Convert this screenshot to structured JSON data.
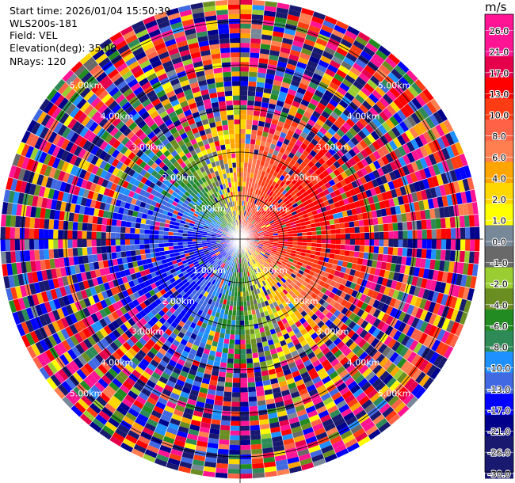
{
  "info": {
    "start_time": "Start time: 2026/01/04 15:50:39",
    "instrument": "WLS200s-181",
    "field": "Field: VEL",
    "elevation": "Elevation(deg): 35.00",
    "nrays": "NRays: 120"
  },
  "colorbar": {
    "unit": "m/s",
    "ticks": [
      "26.0",
      "21.0",
      "17.0",
      "13.0",
      "10.0",
      "8.0",
      "6.0",
      "4.0",
      "2.0",
      "1.0",
      "0.0",
      "-1.0",
      "-2.0",
      "-4.0",
      "-6.0",
      "-8.0",
      "-10.0",
      "-13.0",
      "-17.0",
      "-21.0",
      "-26.0",
      "-30.0"
    ],
    "colors": [
      "#ff1493",
      "#ff1493",
      "#e6004c",
      "#ff0000",
      "#ff3c14",
      "#ff6347",
      "#ff7f50",
      "#ffa500",
      "#ffd700",
      "#ffff00",
      "#778899",
      "#696969",
      "#9acd32",
      "#6b8e23",
      "#228b22",
      "#2e8b57",
      "#1e90ff",
      "#4169e1",
      "#0000ff",
      "#00008b",
      "#191970",
      "#191970"
    ]
  },
  "chart_data": {
    "type": "heatmap",
    "projection": "polar-ppi",
    "field": "VEL",
    "units": "m/s",
    "n_rays": 120,
    "range_ring_labels": [
      "1.00km",
      "2.00km",
      "3.00km",
      "4.00km",
      "5.00km"
    ],
    "range_rings_km": [
      1,
      2,
      3,
      4,
      5
    ],
    "max_range_km": 5.5,
    "color_levels": [
      -30,
      -26,
      -21,
      -17,
      -13,
      -10,
      -8,
      -6,
      -4,
      -2,
      -1,
      0,
      1,
      2,
      4,
      6,
      8,
      10,
      13,
      17,
      21,
      26
    ],
    "dominant_pattern": "positive (red, ~13-17 m/s) toward east/northeast, negative (blue, ~-13 to -17 m/s) toward west; noisy random velocities beyond ~3 km"
  }
}
